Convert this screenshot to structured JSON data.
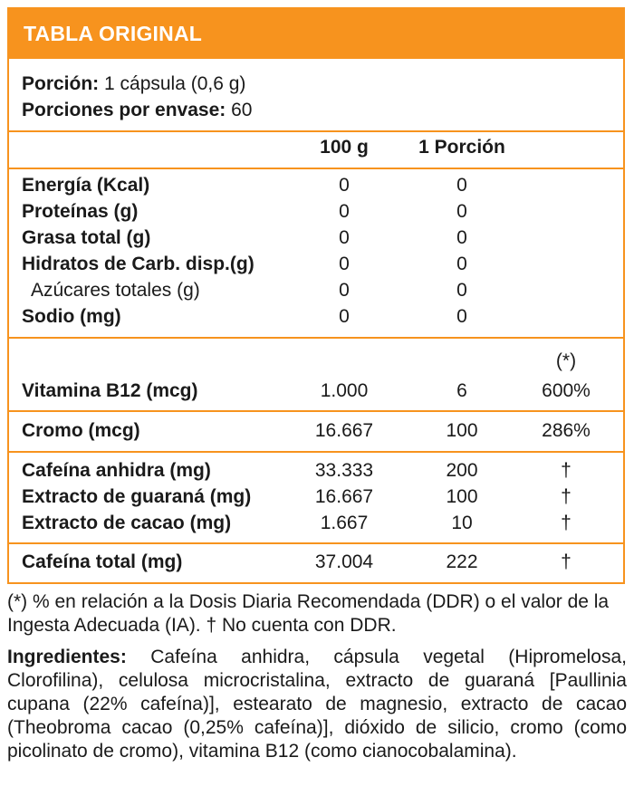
{
  "header": {
    "title": "TABLA ORIGINAL"
  },
  "serving": {
    "portion_label": "Porción:",
    "portion_value": " 1 cápsula (0,6 g)",
    "per_container_label": "Porciones por envase:",
    "per_container_value": " 60"
  },
  "columns": {
    "per100": "100 g",
    "perPortion": "1 Porción"
  },
  "macros": [
    {
      "name": "Energía (Kcal)",
      "per100": "0",
      "perPortion": "0"
    },
    {
      "name": "Proteínas (g)",
      "per100": "0",
      "perPortion": "0"
    },
    {
      "name": "Grasa total (g)",
      "per100": "0",
      "perPortion": "0"
    },
    {
      "name": "Hidratos de Carb. disp.(g)",
      "per100": "0",
      "perPortion": "0"
    },
    {
      "name": "Azúcares totales (g)",
      "per100": "0",
      "perPortion": "0"
    },
    {
      "name": "Sodio (mg)",
      "per100": "0",
      "perPortion": "0"
    }
  ],
  "ddr_note": "(*)",
  "vitamins": {
    "b12": {
      "name": "Vitamina B12 (mcg)",
      "per100": "1.000",
      "perPortion": "6",
      "ddr": "600%"
    }
  },
  "chromium": {
    "name": "Cromo (mcg)",
    "per100": "16.667",
    "perPortion": "100",
    "ddr": "286%"
  },
  "caffeine_sources": [
    {
      "name": "Cafeína anhidra (mg)",
      "per100": "33.333",
      "perPortion": "200",
      "ddr": "†"
    },
    {
      "name": "Extracto de guaraná (mg)",
      "per100": "16.667",
      "perPortion": "100",
      "ddr": "†"
    },
    {
      "name": "Extracto de cacao (mg)",
      "per100": "1.667",
      "perPortion": "10",
      "ddr": "†"
    }
  ],
  "caffeine_total": {
    "name": "Cafeína total (mg)",
    "per100": "37.004",
    "perPortion": "222",
    "ddr": "†"
  },
  "footnote": "(*) % en relación a la Dosis Diaria Recomendada (DDR) o el valor de la Ingesta Adecuada (IA). † No cuenta con DDR.",
  "ingredients": {
    "label": "Ingredientes:",
    "text": " Cafeína anhidra, cápsula vegetal (Hipromelosa, Clorofilina), celulosa microcristalina, extracto de guaraná [Paullinia cupana (22% cafeína)], estearato de magnesio, extracto de cacao (Theobroma cacao (0,25% cafeína)], dióxido de silicio, cromo (como picolinato de cromo), vitamina B12 (como cianocobalamina)."
  }
}
